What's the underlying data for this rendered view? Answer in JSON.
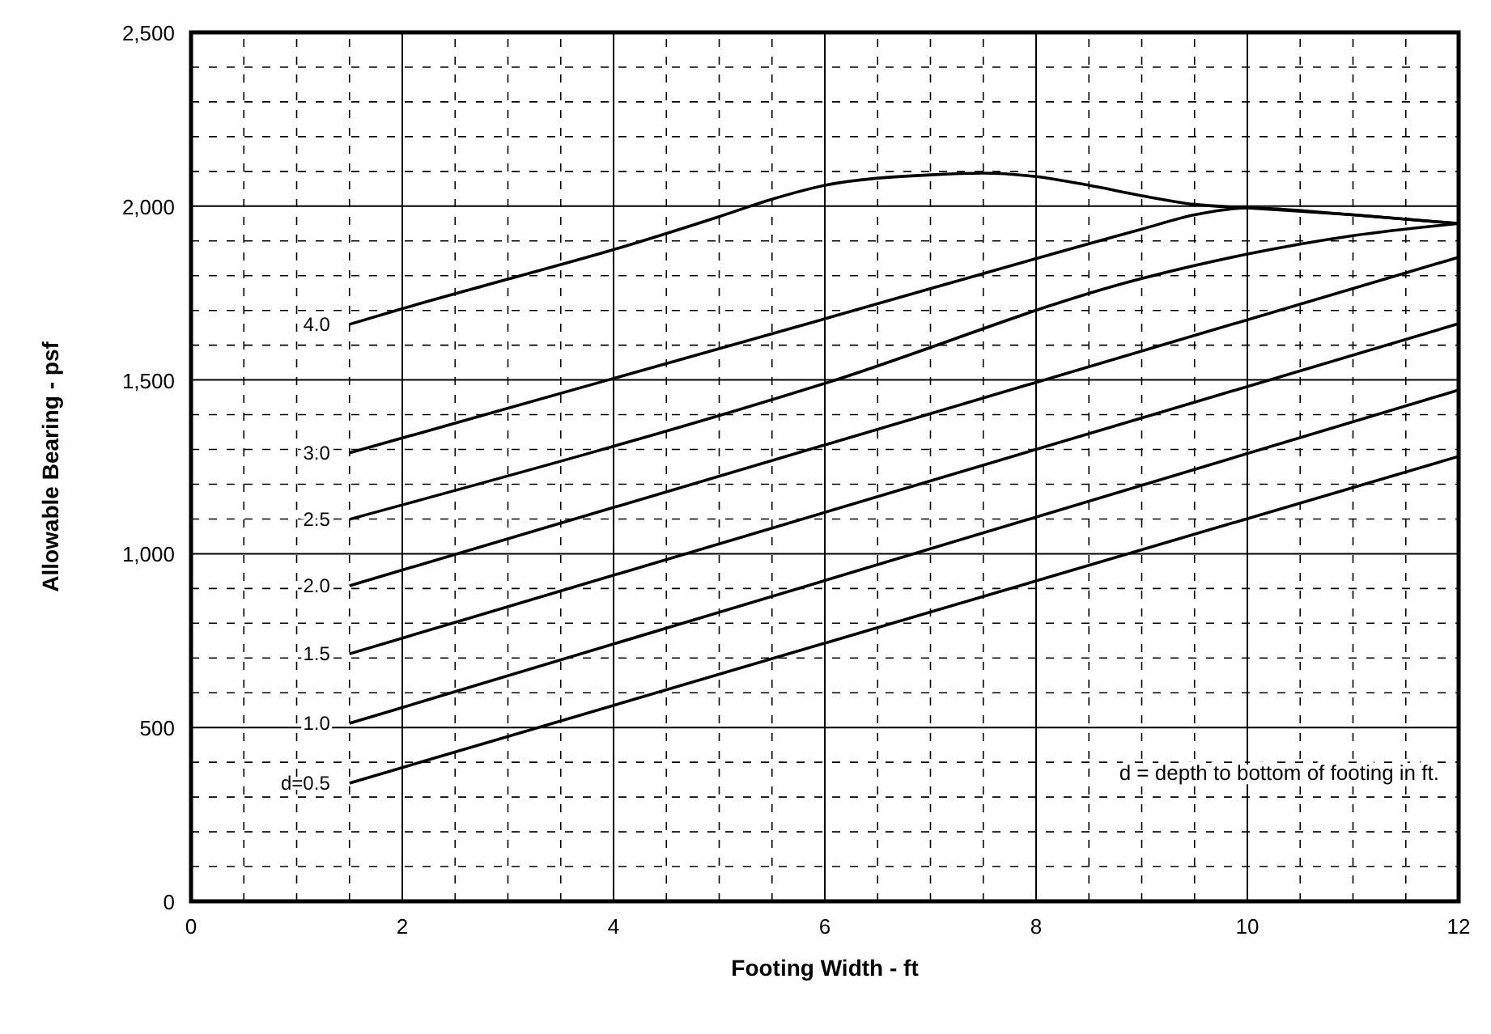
{
  "chart_data": {
    "type": "line",
    "xlabel": "Footing Width  -  ft",
    "ylabel": "Allowable Bearing  -  psf",
    "xlim": [
      0,
      12
    ],
    "xticks": [
      0,
      2,
      4,
      6,
      8,
      10,
      12
    ],
    "ylim": [
      0,
      2500
    ],
    "yticks": [
      0,
      {
        "value": 500,
        "label": "500"
      },
      {
        "value": 1000,
        "label": "1,000"
      },
      {
        "value": 1500,
        "label": "1,500"
      },
      {
        "value": 2000,
        "label": "2,000"
      },
      {
        "value": 2500,
        "label": "2,500"
      }
    ],
    "grid": true,
    "line_style": "solid",
    "marker": "none",
    "annotations": [
      "d = depth to bottom of footing in ft."
    ],
    "series": [
      {
        "name": "d=0.5",
        "color": "#000000",
        "x": [
          1.5,
          12
        ],
        "values": [
          340,
          1280
        ]
      },
      {
        "name": "1.0",
        "color": "#000000",
        "x": [
          1.5,
          12
        ],
        "values": [
          512,
          1471
        ]
      },
      {
        "name": "1.5",
        "color": "#000000",
        "x": [
          1.5,
          12
        ],
        "values": [
          712,
          1662
        ]
      },
      {
        "name": "2.0",
        "color": "#000000",
        "x": [
          1.5,
          12
        ],
        "values": [
          908,
          1853
        ]
      },
      {
        "name": "2.5",
        "color": "#000000",
        "x": [
          1.5,
          6,
          9,
          10,
          11,
          12
        ],
        "values": [
          1099,
          1490,
          1792,
          1862,
          1915,
          1950
        ]
      },
      {
        "name": "3.0",
        "color": "#000000",
        "x": [
          1.5,
          6,
          9,
          9.5,
          10,
          11,
          12
        ],
        "values": [
          1290,
          1676,
          1934,
          1975,
          1995,
          1975,
          1950
        ]
      },
      {
        "name": "4.0",
        "color": "#000000",
        "x": [
          1.5,
          2,
          3,
          4,
          5,
          5.5,
          6,
          7,
          7.5,
          8,
          8.5,
          9,
          9.5,
          10,
          11,
          12
        ],
        "values": [
          1660,
          1705,
          1790,
          1875,
          1970,
          2020,
          2060,
          2090,
          2095,
          2085,
          2060,
          2030,
          2005,
          1995,
          1975,
          1950
        ]
      }
    ]
  }
}
